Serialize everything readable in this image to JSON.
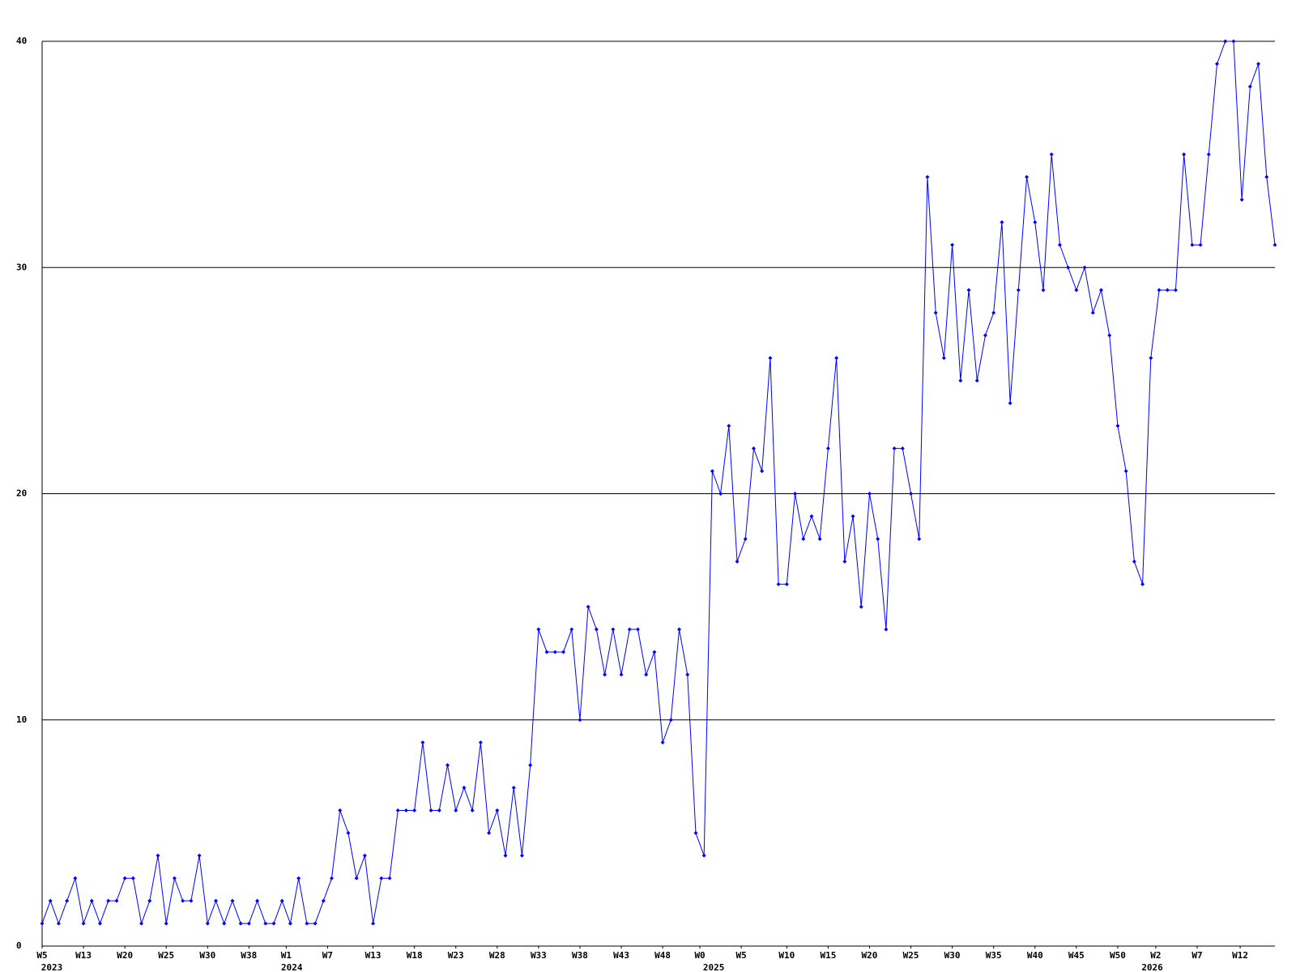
{
  "chart_data": {
    "type": "line",
    "color": "#0000ff",
    "grid": true,
    "x": [
      0,
      1,
      2,
      3,
      4,
      5,
      6,
      7,
      8,
      9,
      10,
      11,
      12,
      13,
      14,
      15,
      16,
      17,
      18,
      19,
      20,
      21,
      22,
      23,
      24,
      25,
      26,
      27,
      28,
      29,
      30,
      31,
      32,
      33,
      34,
      35,
      36,
      37,
      38,
      39,
      40,
      41,
      42,
      43,
      44,
      45,
      46,
      47,
      48,
      49,
      50,
      51,
      52,
      53,
      54,
      55,
      56,
      57,
      58,
      59,
      60,
      61,
      62,
      63,
      64,
      65,
      66,
      67,
      68,
      69,
      70,
      71,
      72,
      73,
      74,
      75,
      76,
      77,
      78,
      79,
      80,
      81,
      82,
      83,
      84,
      85,
      86,
      87,
      88,
      89,
      90,
      91,
      92,
      93,
      94,
      95,
      96,
      97,
      98,
      99,
      100,
      101,
      102,
      103,
      104,
      105,
      106,
      107,
      108,
      109,
      110,
      111,
      112,
      113,
      114,
      115,
      116,
      117,
      118,
      119,
      120,
      121,
      122,
      123,
      124,
      125,
      126,
      127,
      128,
      129,
      130,
      131,
      132,
      133,
      134,
      135,
      136,
      137,
      138,
      139,
      140,
      141,
      142,
      143,
      144,
      145,
      146,
      147,
      148,
      149
    ],
    "values": [
      1,
      2,
      1,
      2,
      3,
      1,
      2,
      1,
      2,
      2,
      3,
      3,
      1,
      2,
      4,
      1,
      3,
      2,
      2,
      4,
      1,
      2,
      1,
      2,
      1,
      1,
      2,
      1,
      1,
      2,
      1,
      3,
      1,
      1,
      2,
      3,
      6,
      5,
      3,
      4,
      1,
      3,
      3,
      6,
      6,
      6,
      9,
      6,
      6,
      8,
      6,
      7,
      6,
      9,
      5,
      6,
      4,
      7,
      4,
      8,
      14,
      13,
      13,
      13,
      14,
      10,
      15,
      14,
      12,
      14,
      12,
      14,
      14,
      12,
      13,
      9,
      10,
      14,
      12,
      5,
      4,
      21,
      20,
      23,
      17,
      18,
      22,
      21,
      26,
      16,
      16,
      20,
      18,
      19,
      18,
      22,
      26,
      17,
      19,
      15,
      20,
      18,
      14,
      22,
      22,
      20,
      18,
      34,
      28,
      26,
      31,
      25,
      29,
      25,
      27,
      28,
      32,
      24,
      29,
      34,
      32,
      29,
      35,
      31,
      30,
      29,
      30,
      28,
      29,
      27,
      23,
      21,
      17,
      16,
      26,
      29,
      29,
      29,
      35,
      31,
      31,
      35,
      39,
      40,
      40,
      33,
      38,
      39,
      34,
      31
    ],
    "xlim": [
      0,
      149
    ],
    "xticks": [
      {
        "value": 0,
        "label": "W5"
      },
      {
        "value": 5,
        "label": "W13"
      },
      {
        "value": 10,
        "label": "W20"
      },
      {
        "value": 15,
        "label": "W25"
      },
      {
        "value": 20,
        "label": "W30"
      },
      {
        "value": 25,
        "label": "W38"
      },
      {
        "value": 29.5,
        "label": "W1"
      },
      {
        "value": 34.5,
        "label": "W7"
      },
      {
        "value": 40,
        "label": "W13"
      },
      {
        "value": 45,
        "label": "W18"
      },
      {
        "value": 50,
        "label": "W23"
      },
      {
        "value": 55,
        "label": "W28"
      },
      {
        "value": 60,
        "label": "W33"
      },
      {
        "value": 65,
        "label": "W38"
      },
      {
        "value": 70,
        "label": "W43"
      },
      {
        "value": 75,
        "label": "W48"
      },
      {
        "value": 79.5,
        "label": "W0"
      },
      {
        "value": 84.5,
        "label": "W5"
      },
      {
        "value": 90,
        "label": "W10"
      },
      {
        "value": 95,
        "label": "W15"
      },
      {
        "value": 100,
        "label": "W20"
      },
      {
        "value": 105,
        "label": "W25"
      },
      {
        "value": 110,
        "label": "W30"
      },
      {
        "value": 115,
        "label": "W35"
      },
      {
        "value": 120,
        "label": "W40"
      },
      {
        "value": 125,
        "label": "W45"
      },
      {
        "value": 130,
        "label": "W50"
      },
      {
        "value": 134.6,
        "label": "W2"
      },
      {
        "value": 139.6,
        "label": "W7"
      },
      {
        "value": 144.8,
        "label": "W12"
      }
    ],
    "year_labels": [
      {
        "value": 0,
        "label": "2023"
      },
      {
        "value": 29,
        "label": "2024"
      },
      {
        "value": 80,
        "label": "2025"
      },
      {
        "value": 133,
        "label": "2026"
      }
    ],
    "ylim": [
      0,
      40
    ],
    "yticks": [
      0,
      10,
      20,
      30,
      40
    ]
  }
}
